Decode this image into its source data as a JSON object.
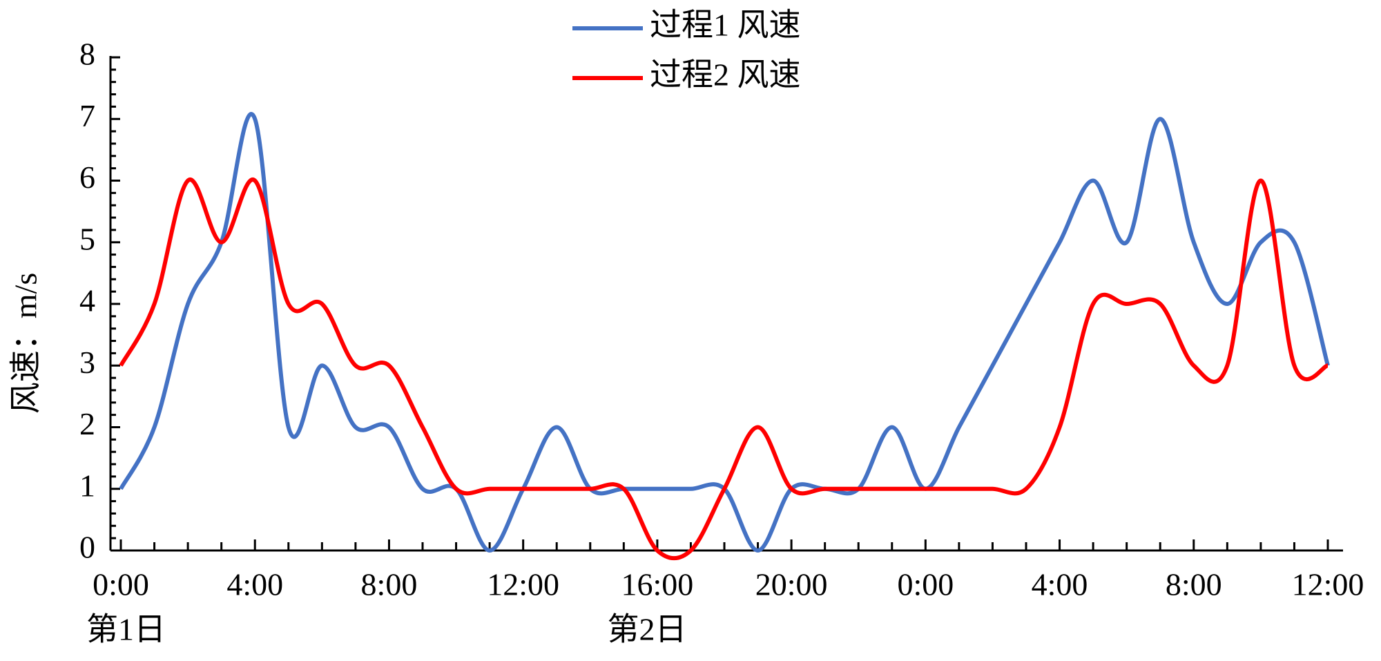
{
  "chart_data": {
    "type": "line",
    "y_label": "风速：m/s",
    "annotations": [
      "第1日",
      "第2日"
    ],
    "categories": [
      "0:00",
      null,
      null,
      null,
      "4:00",
      null,
      null,
      null,
      "8:00",
      null,
      null,
      null,
      "12:00",
      null,
      null,
      null,
      "16:00",
      null,
      null,
      null,
      "20:00",
      null,
      null,
      null,
      "0:00",
      null,
      null,
      null,
      "4:00",
      null,
      null,
      null,
      "8:00",
      null,
      null,
      null,
      "12:00"
    ],
    "series": [
      {
        "name": "过程1 风速",
        "color": "#4472c4",
        "values": [
          1,
          2,
          4,
          5,
          7,
          2,
          3,
          2,
          2,
          1,
          1,
          0,
          1,
          2,
          1,
          1,
          1,
          1,
          1,
          0,
          1,
          1,
          1,
          2,
          1,
          2,
          3,
          4,
          5,
          6,
          5,
          7,
          5,
          4,
          5,
          5,
          3
        ]
      },
      {
        "name": "过程2 风速",
        "color": "#ff0000",
        "values": [
          3,
          4,
          6,
          5,
          6,
          4,
          4,
          3,
          3,
          2,
          1,
          1,
          1,
          1,
          1,
          1,
          0,
          0,
          1,
          2,
          1,
          1,
          1,
          1,
          1,
          1,
          1,
          1,
          2,
          4,
          4,
          4,
          3,
          3,
          6,
          3,
          3
        ]
      }
    ],
    "ylim": [
      0,
      8
    ],
    "yticks": [
      0,
      1,
      2,
      3,
      4,
      5,
      6,
      7,
      8
    ],
    "grid": false,
    "legend": "top"
  }
}
